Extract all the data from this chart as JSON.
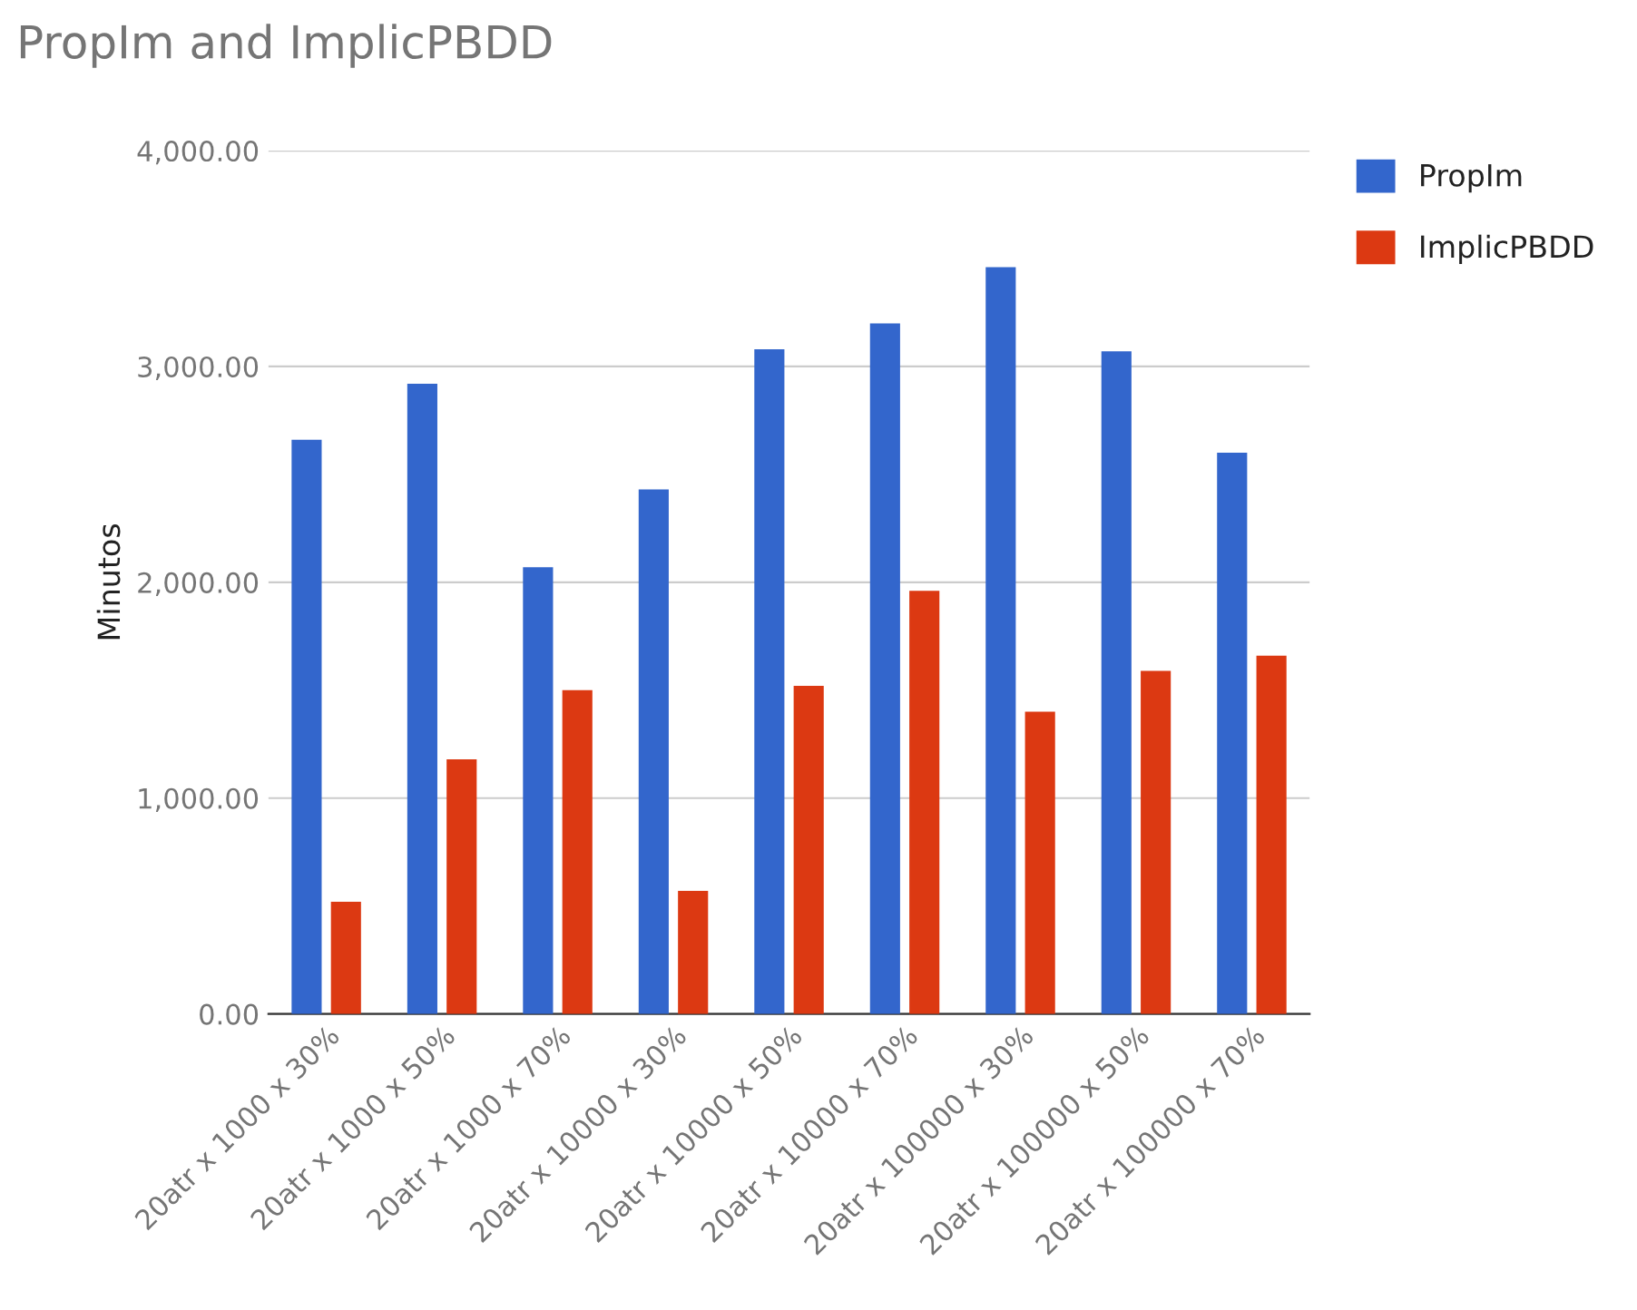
{
  "chart_data": {
    "type": "bar",
    "title": "PropIm and ImplicPBDD",
    "ylabel": "Minutos",
    "categories": [
      "20atr x 1000 x 30%",
      "20atr x 1000 x 50%",
      "20atr x 1000 x 70%",
      "20atr x 10000 x 30%",
      "20atr x 10000 x 50%",
      "20atr x 10000 x 70%",
      "20atr x 100000 x 30%",
      "20atr x 100000 x 50%",
      "20atr x 100000 x 70%"
    ],
    "series": [
      {
        "name": "PropIm",
        "color": "#3366cc",
        "values": [
          2660,
          2920,
          2070,
          2430,
          3080,
          3200,
          3460,
          3070,
          2600
        ]
      },
      {
        "name": "ImplicPBDD",
        "color": "#dc3912",
        "values": [
          520,
          1180,
          1500,
          570,
          1520,
          1960,
          1400,
          1590,
          1660
        ]
      }
    ],
    "ylim": [
      0,
      4000
    ],
    "yticks": [
      {
        "value": 0,
        "label": "0.00"
      },
      {
        "value": 1000,
        "label": "1,000.00"
      },
      {
        "value": 2000,
        "label": "2,000.00"
      },
      {
        "value": 3000,
        "label": "3,000.00"
      },
      {
        "value": 4000,
        "label": "4,000.00"
      }
    ],
    "grid": "y",
    "legend": "top right"
  }
}
